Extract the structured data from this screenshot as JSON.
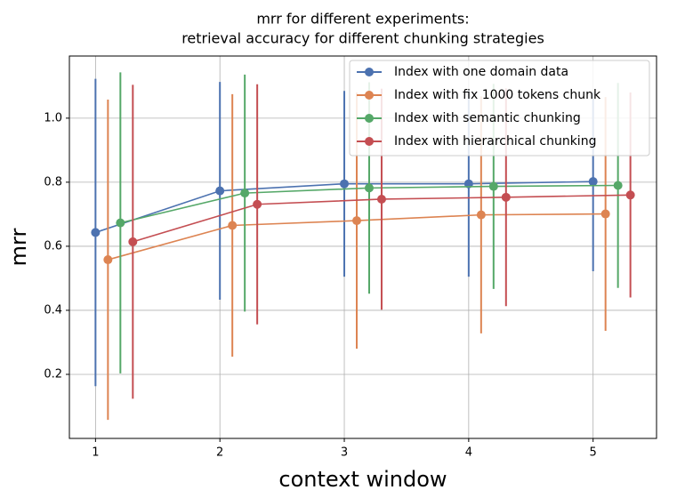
{
  "chart_data": {
    "type": "errorbar-line",
    "title": [
      "mrr for different experiments:",
      "retrieval accuracy for different chunking strategies"
    ],
    "xlabel": "context window",
    "ylabel": "mrr",
    "xlim": [
      0.79,
      5.51
    ],
    "ylim": [
      0,
      1.194
    ],
    "xticks": [
      1,
      2,
      3,
      4,
      5
    ],
    "yticks": [
      0.2,
      0.4,
      0.6,
      0.8,
      {
        "value": 1,
        "label": "1.0"
      }
    ],
    "grid": true,
    "legend": "upper right",
    "series": [
      {
        "name": "Index with one domain data",
        "color": "#4c72b0",
        "x": [
          1,
          2,
          3,
          4,
          5
        ],
        "values": [
          0.643,
          0.773,
          0.795,
          0.795,
          0.802
        ],
        "errors": [
          0.48,
          0.34,
          0.29,
          0.29,
          0.28
        ]
      },
      {
        "name": "Index with fix 1000 tokens chunk",
        "color": "#dd8452",
        "x": [
          1.1,
          2.1,
          3.1,
          4.1,
          5.1
        ],
        "values": [
          0.558,
          0.665,
          0.68,
          0.698,
          0.701
        ],
        "errors": [
          0.5,
          0.41,
          0.4,
          0.37,
          0.365
        ]
      },
      {
        "name": "Index with semantic chunking",
        "color": "#55a868",
        "x": [
          1.2,
          2.2,
          3.2,
          4.2,
          5.2
        ],
        "values": [
          0.673,
          0.766,
          0.782,
          0.787,
          0.79
        ],
        "errors": [
          0.47,
          0.37,
          0.33,
          0.32,
          0.32
        ]
      },
      {
        "name": "Index with hierarchical chunking",
        "color": "#c44e52",
        "x": [
          1.3,
          2.3,
          3.3,
          4.3,
          5.3
        ],
        "values": [
          0.614,
          0.731,
          0.747,
          0.753,
          0.76
        ],
        "errors": [
          0.49,
          0.375,
          0.345,
          0.34,
          0.32
        ]
      }
    ]
  }
}
